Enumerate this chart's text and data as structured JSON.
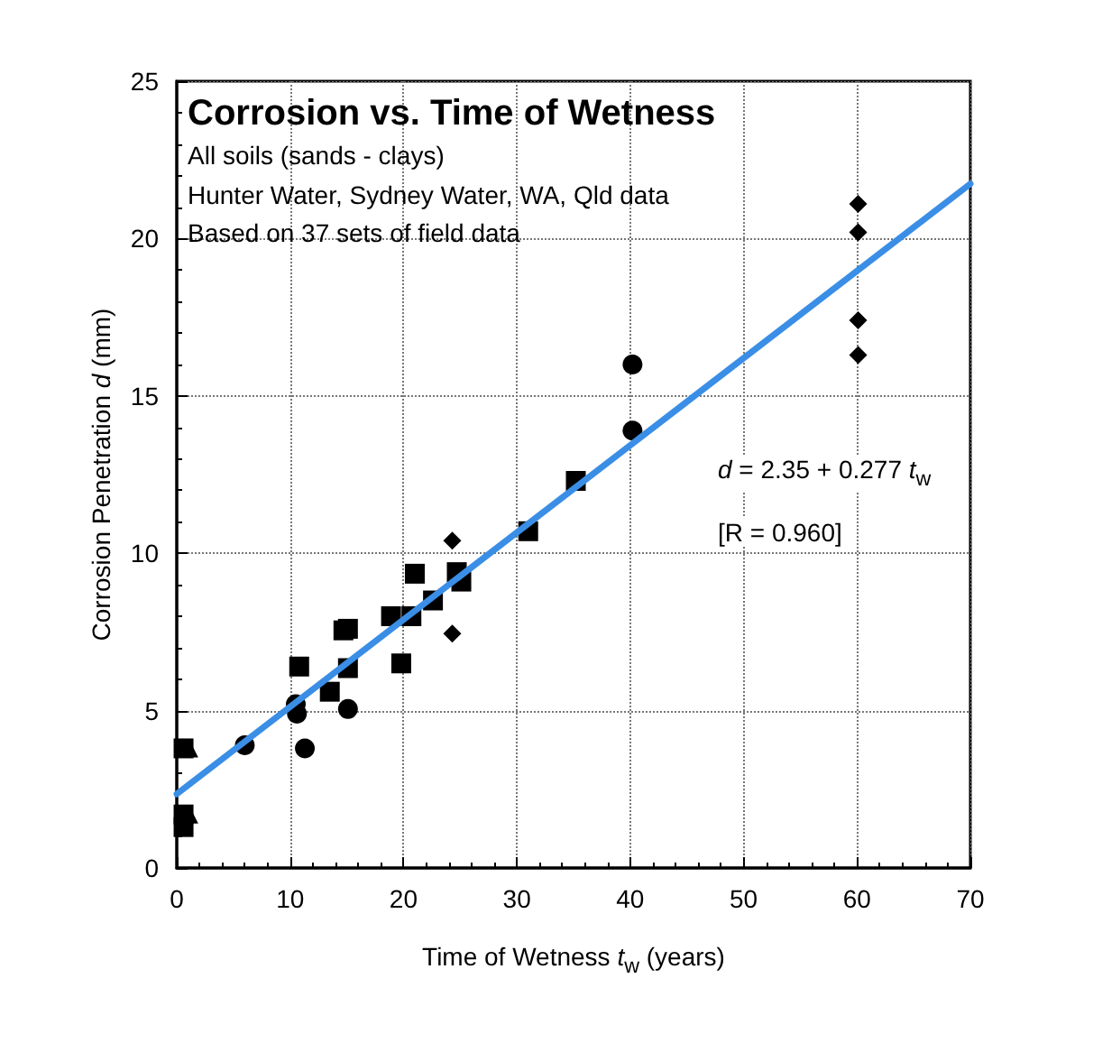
{
  "chart_data": {
    "type": "scatter",
    "title": "Corrosion vs. Time of Wetness",
    "xlabel": "Time of Wetness t$_{w}$ (years)",
    "ylabel": "Corrosion Penetration d (mm)",
    "annotations": [
      "All soils (sands - clays)",
      "Hunter Water, Sydney Water, WA, Qld data",
      "Based on 37 sets of field data",
      "d = 2.35 + 0.277 t$_{w}$",
      "[R = 0.960]"
    ],
    "xlim": [
      0,
      70
    ],
    "xticks": [
      0,
      10,
      20,
      30,
      40,
      50,
      60,
      70
    ],
    "ylim": [
      0,
      25
    ],
    "yticks": [
      0,
      5,
      10,
      15,
      20,
      25
    ],
    "grid": true,
    "series": [
      {
        "marker": "circle",
        "color": "#000000",
        "x": [
          6.0,
          10.5,
          10.6,
          11.3,
          15.1,
          40.2,
          40.2
        ],
        "values": [
          3.9,
          5.2,
          4.9,
          3.8,
          5.05,
          16.0,
          13.9
        ]
      },
      {
        "marker": "square",
        "color": "#000000",
        "x": [
          0.6,
          0.6,
          0.6,
          10.8,
          13.5,
          14.7,
          15.1,
          15.1,
          18.9,
          19.8,
          20.7,
          21.0,
          22.6,
          24.7,
          25.1,
          31.0,
          35.2
        ],
        "values": [
          1.3,
          1.7,
          3.8,
          6.4,
          5.6,
          7.55,
          7.6,
          6.35,
          8.0,
          6.5,
          8.0,
          9.35,
          8.5,
          9.4,
          9.1,
          10.7,
          12.3
        ]
      },
      {
        "marker": "diamond",
        "color": "#000000",
        "x": [
          24.3,
          24.3,
          60.1,
          60.1,
          60.1,
          60.1
        ],
        "values": [
          10.4,
          7.45,
          21.1,
          20.2,
          17.4,
          16.3
        ]
      },
      {
        "marker": "triangle",
        "color": "#000000",
        "x": [
          1.1,
          1.1
        ],
        "values": [
          3.8,
          1.7
        ]
      },
      {
        "type": "line",
        "marker": "none",
        "line_style": "solid",
        "color": "#3a8ee6",
        "x": [
          0,
          70
        ],
        "values": [
          2.35,
          21.74
        ]
      }
    ]
  }
}
